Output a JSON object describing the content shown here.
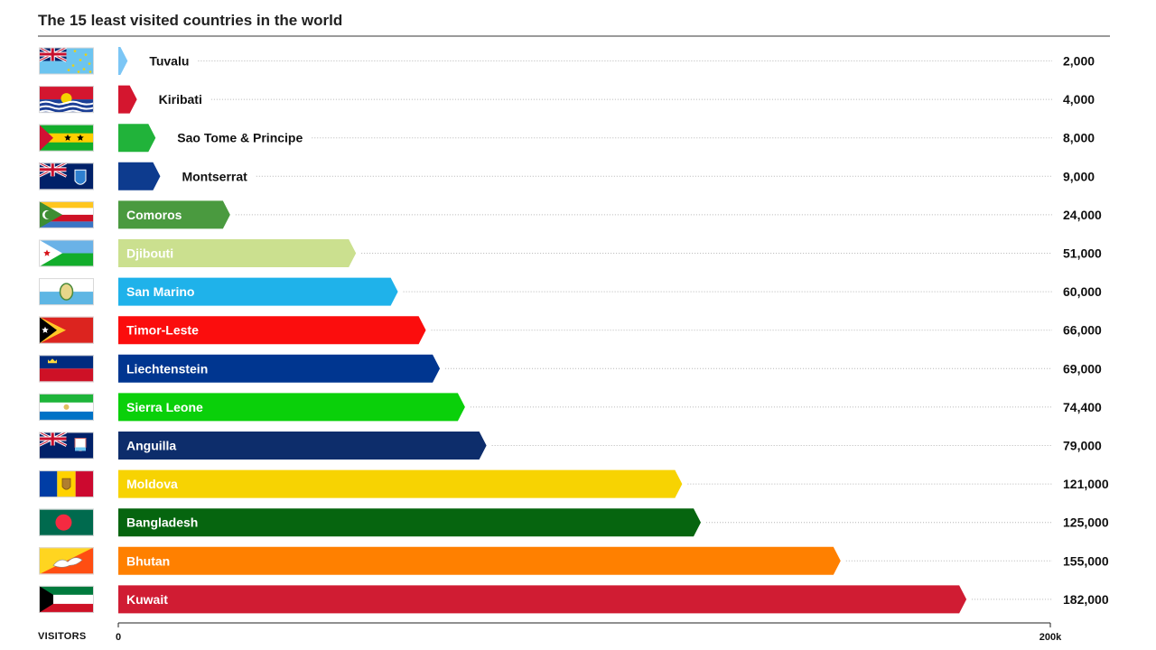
{
  "title": "The 15 least visited countries in the world",
  "footer": {
    "axis_name": "VISITORS"
  },
  "chart_data": {
    "type": "bar",
    "orientation": "horizontal",
    "title": "The 15 least visited countries in the world",
    "xlabel": "VISITORS",
    "xlim": [
      0,
      200000
    ],
    "x_ticks": [
      "0",
      "200k"
    ],
    "grid": false,
    "categories": [
      "Tuvalu",
      "Kiribati",
      "Sao Tome & Principe",
      "Montserrat",
      "Comoros",
      "Djibouti",
      "San Marino",
      "Timor-Leste",
      "Liechtenstein",
      "Sierra Leone",
      "Anguilla",
      "Moldova",
      "Bangladesh",
      "Bhutan",
      "Kuwait"
    ],
    "values": [
      2000,
      4000,
      8000,
      9000,
      24000,
      51000,
      60000,
      66000,
      69000,
      74400,
      79000,
      121000,
      125000,
      155000,
      182000
    ],
    "value_labels": [
      "2,000",
      "4,000",
      "8,000",
      "9,000",
      "24,000",
      "51,000",
      "60,000",
      "66,000",
      "69,000",
      "74,400",
      "79,000",
      "121,000",
      "125,000",
      "155,000",
      "182,000"
    ],
    "colors": [
      "#7cc6f5",
      "#d4162f",
      "#21b33a",
      "#0d3b8e",
      "#4a9a3f",
      "#cbe08f",
      "#1fb2ea",
      "#fb0d0d",
      "#003690",
      "#0ad00a",
      "#0d2d6b",
      "#f7d302",
      "#06650f",
      "#ff8000",
      "#d01c33"
    ],
    "flags": [
      "tuvalu-flag",
      "kiribati-flag",
      "sao-tome-flag",
      "montserrat-flag",
      "comoros-flag",
      "djibouti-flag",
      "san-marino-flag",
      "timor-leste-flag",
      "liechtenstein-flag",
      "sierra-leone-flag",
      "anguilla-flag",
      "moldova-flag",
      "bangladesh-flag",
      "bhutan-flag",
      "kuwait-flag"
    ]
  }
}
